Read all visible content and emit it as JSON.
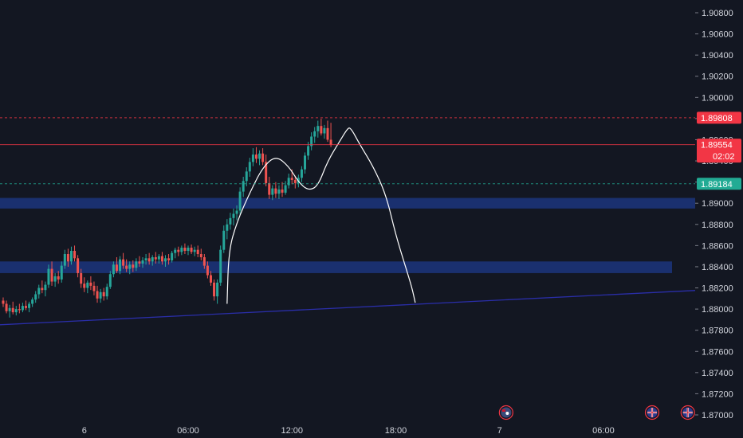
{
  "chart_data": {
    "type": "candlestick",
    "y_axis": {
      "min": 1.87,
      "max": 1.909,
      "ticks": [
        "1.90800",
        "1.90600",
        "1.90400",
        "1.90200",
        "1.90000",
        "1.89800",
        "1.89600",
        "1.89400",
        "1.89200",
        "1.89000",
        "1.88800",
        "1.88600",
        "1.88400",
        "1.88200",
        "1.88000",
        "1.87800",
        "1.87600",
        "1.87400",
        "1.87200",
        "1.87000"
      ],
      "tick_values": [
        1.908,
        1.906,
        1.904,
        1.902,
        1.9,
        1.898,
        1.896,
        1.894,
        1.892,
        1.89,
        1.888,
        1.886,
        1.884,
        1.882,
        1.88,
        1.878,
        1.876,
        1.874,
        1.872,
        1.87
      ]
    },
    "x_axis": {
      "labels": [
        {
          "text": "6",
          "index": 25
        },
        {
          "text": "06:00",
          "index": 57
        },
        {
          "text": "12:00",
          "index": 89
        },
        {
          "text": "18:00",
          "index": 121
        },
        {
          "text": "7",
          "index": 153
        },
        {
          "text": "06:00",
          "index": 185
        }
      ]
    },
    "candles": [
      [
        1.8808,
        1.8811,
        1.8802,
        1.8805
      ],
      [
        1.8805,
        1.8808,
        1.8796,
        1.8798
      ],
      [
        1.8798,
        1.8804,
        1.8792,
        1.8801
      ],
      [
        1.8801,
        1.8807,
        1.8795,
        1.8797
      ],
      [
        1.8797,
        1.8803,
        1.8794,
        1.88
      ],
      [
        1.88,
        1.8805,
        1.8796,
        1.8799
      ],
      [
        1.8799,
        1.8806,
        1.8797,
        1.8803
      ],
      [
        1.8803,
        1.8808,
        1.8799,
        1.8801
      ],
      [
        1.8801,
        1.8807,
        1.8797,
        1.8805
      ],
      [
        1.8805,
        1.8811,
        1.8802,
        1.8809
      ],
      [
        1.8809,
        1.8817,
        1.8806,
        1.8814
      ],
      [
        1.8814,
        1.8823,
        1.881,
        1.882
      ],
      [
        1.882,
        1.8827,
        1.8815,
        1.8818
      ],
      [
        1.8818,
        1.8826,
        1.8812,
        1.8823
      ],
      [
        1.8823,
        1.8842,
        1.882,
        1.8838
      ],
      [
        1.8838,
        1.8845,
        1.8822,
        1.8826
      ],
      [
        1.8826,
        1.8834,
        1.8821,
        1.8831
      ],
      [
        1.8831,
        1.8836,
        1.8824,
        1.8828
      ],
      [
        1.8828,
        1.8845,
        1.8825,
        1.8841
      ],
      [
        1.8841,
        1.8856,
        1.8838,
        1.8852
      ],
      [
        1.8852,
        1.8857,
        1.884,
        1.8845
      ],
      [
        1.8845,
        1.8859,
        1.8842,
        1.8855
      ],
      [
        1.8855,
        1.886,
        1.8845,
        1.8848
      ],
      [
        1.8848,
        1.8851,
        1.883,
        1.8834
      ],
      [
        1.8834,
        1.8838,
        1.882,
        1.8824
      ],
      [
        1.8824,
        1.883,
        1.8816,
        1.882
      ],
      [
        1.882,
        1.8827,
        1.8815,
        1.8825
      ],
      [
        1.8825,
        1.8831,
        1.8818,
        1.8822
      ],
      [
        1.8822,
        1.8826,
        1.8813,
        1.8817
      ],
      [
        1.8817,
        1.8822,
        1.8806,
        1.881
      ],
      [
        1.881,
        1.8819,
        1.8806,
        1.8816
      ],
      [
        1.8816,
        1.882,
        1.8808,
        1.8812
      ],
      [
        1.8812,
        1.8824,
        1.8809,
        1.8821
      ],
      [
        1.8821,
        1.8836,
        1.8819,
        1.8833
      ],
      [
        1.8833,
        1.8845,
        1.883,
        1.8842
      ],
      [
        1.8842,
        1.8849,
        1.8834,
        1.8836
      ],
      [
        1.8836,
        1.885,
        1.8833,
        1.8847
      ],
      [
        1.8847,
        1.8853,
        1.8838,
        1.8841
      ],
      [
        1.8841,
        1.8847,
        1.8835,
        1.8838
      ],
      [
        1.8838,
        1.8845,
        1.8833,
        1.8842
      ],
      [
        1.8842,
        1.8846,
        1.8835,
        1.8839
      ],
      [
        1.8839,
        1.8848,
        1.8836,
        1.8845
      ],
      [
        1.8845,
        1.885,
        1.884,
        1.8843
      ],
      [
        1.8843,
        1.8849,
        1.8839,
        1.8846
      ],
      [
        1.8846,
        1.8852,
        1.8842,
        1.8848
      ],
      [
        1.8848,
        1.8853,
        1.8842,
        1.8845
      ],
      [
        1.8845,
        1.8851,
        1.8841,
        1.8849
      ],
      [
        1.8849,
        1.8854,
        1.8843,
        1.8847
      ],
      [
        1.8847,
        1.8852,
        1.8843,
        1.885
      ],
      [
        1.885,
        1.8854,
        1.8842,
        1.8845
      ],
      [
        1.8845,
        1.8851,
        1.884,
        1.8848
      ],
      [
        1.8848,
        1.8852,
        1.8842,
        1.8846
      ],
      [
        1.8846,
        1.8855,
        1.8844,
        1.8853
      ],
      [
        1.8853,
        1.8858,
        1.8848,
        1.8856
      ],
      [
        1.8856,
        1.8859,
        1.885,
        1.8854
      ],
      [
        1.8854,
        1.886,
        1.8851,
        1.8858
      ],
      [
        1.8858,
        1.8862,
        1.8852,
        1.8855
      ],
      [
        1.8855,
        1.886,
        1.8851,
        1.8858
      ],
      [
        1.8858,
        1.8861,
        1.8852,
        1.8854
      ],
      [
        1.8854,
        1.8859,
        1.885,
        1.8856
      ],
      [
        1.8856,
        1.886,
        1.8849,
        1.8852
      ],
      [
        1.8852,
        1.8857,
        1.8846,
        1.8849
      ],
      [
        1.8849,
        1.8852,
        1.8838,
        1.8841
      ],
      [
        1.8841,
        1.8845,
        1.8829,
        1.8832
      ],
      [
        1.8832,
        1.8836,
        1.8822,
        1.8825
      ],
      [
        1.8825,
        1.8828,
        1.8808,
        1.8812
      ],
      [
        1.8812,
        1.8828,
        1.8805,
        1.8825
      ],
      [
        1.8825,
        1.886,
        1.8822,
        1.8856
      ],
      [
        1.8856,
        1.8879,
        1.8853,
        1.8874
      ],
      [
        1.8874,
        1.8885,
        1.8866,
        1.888
      ],
      [
        1.888,
        1.8891,
        1.8875,
        1.8886
      ],
      [
        1.8886,
        1.8895,
        1.8879,
        1.889
      ],
      [
        1.889,
        1.8898,
        1.8884,
        1.8893
      ],
      [
        1.8893,
        1.8915,
        1.8889,
        1.8911
      ],
      [
        1.8911,
        1.8925,
        1.8906,
        1.8921
      ],
      [
        1.8921,
        1.8934,
        1.8916,
        1.893
      ],
      [
        1.893,
        1.8943,
        1.8925,
        1.8939
      ],
      [
        1.8939,
        1.8952,
        1.8935,
        1.8946
      ],
      [
        1.8946,
        1.8953,
        1.8938,
        1.8942
      ],
      [
        1.8942,
        1.895,
        1.8936,
        1.8947
      ],
      [
        1.8947,
        1.8952,
        1.8936,
        1.8939
      ],
      [
        1.8939,
        1.8946,
        1.8916,
        1.8919
      ],
      [
        1.8919,
        1.8925,
        1.8904,
        1.8908
      ],
      [
        1.8908,
        1.8917,
        1.8903,
        1.8914
      ],
      [
        1.8914,
        1.892,
        1.8905,
        1.8909
      ],
      [
        1.8909,
        1.8917,
        1.8904,
        1.8913
      ],
      [
        1.8913,
        1.892,
        1.8906,
        1.891
      ],
      [
        1.891,
        1.8921,
        1.8908,
        1.8917
      ],
      [
        1.8917,
        1.8928,
        1.8914,
        1.8924
      ],
      [
        1.8924,
        1.8932,
        1.8918,
        1.8922
      ],
      [
        1.8922,
        1.8926,
        1.8914,
        1.8919
      ],
      [
        1.8919,
        1.8927,
        1.8915,
        1.8924
      ],
      [
        1.8924,
        1.8935,
        1.892,
        1.8932
      ],
      [
        1.8932,
        1.8948,
        1.8928,
        1.8945
      ],
      [
        1.8945,
        1.8958,
        1.8941,
        1.8954
      ],
      [
        1.8954,
        1.8967,
        1.895,
        1.8963
      ],
      [
        1.8963,
        1.8972,
        1.8957,
        1.8968
      ],
      [
        1.8968,
        1.8978,
        1.8962,
        1.8973
      ],
      [
        1.8973,
        1.898,
        1.8964,
        1.8966
      ],
      [
        1.8966,
        1.8974,
        1.8961,
        1.8971
      ],
      [
        1.8971,
        1.8978,
        1.8958,
        1.896
      ],
      [
        1.896,
        1.8976,
        1.8953,
        1.8955
      ]
    ],
    "zones": [
      {
        "name": "resistance-zone",
        "from": 1.8895,
        "to": 1.8905
      },
      {
        "name": "support-zone",
        "from": 1.8834,
        "to": 1.8845
      }
    ],
    "trendline": {
      "x1": -2,
      "y1": 1.8785,
      "x2": 216,
      "y2": 1.8818
    },
    "sketch_path": [
      [
        69,
        1.8805
      ],
      [
        69.5,
        1.8855
      ],
      [
        72,
        1.8882
      ],
      [
        76,
        1.891
      ],
      [
        80,
        1.8934
      ],
      [
        84,
        1.8945
      ],
      [
        88,
        1.8935
      ],
      [
        91,
        1.892
      ],
      [
        94,
        1.8912
      ],
      [
        97,
        1.8916
      ],
      [
        100,
        1.894
      ],
      [
        104,
        1.896
      ],
      [
        106,
        1.897
      ],
      [
        107,
        1.8972
      ],
      [
        110,
        1.8955
      ],
      [
        114,
        1.8935
      ],
      [
        118,
        1.8908
      ],
      [
        121,
        1.887
      ],
      [
        124,
        1.884
      ],
      [
        126,
        1.882
      ],
      [
        127,
        1.8806
      ]
    ],
    "price_lines": [
      {
        "name": "high-price",
        "value": 1.89808,
        "label": "1.89808",
        "color": "#f23645",
        "dash": true
      },
      {
        "name": "last-price",
        "value": 1.89554,
        "label": "1.89554",
        "countdown": "02:02",
        "color": "#f23645",
        "dash": false
      },
      {
        "name": "bid-price",
        "value": 1.89184,
        "label": "1.89184",
        "color": "#22ab94",
        "dash": true
      }
    ],
    "event_flags": [
      {
        "name": "economic-event-icon",
        "index": 155,
        "glyph": "AU"
      },
      {
        "name": "uk-flag-icon",
        "index": 200,
        "glyph": "UK"
      },
      {
        "name": "uk-flag-icon",
        "index": 211,
        "glyph": "UK"
      }
    ],
    "colors": {
      "background": "#131722",
      "up": "#26a69a",
      "down": "#ef5350",
      "zone": "#1e3a8a",
      "trendline": "#2a2ea8",
      "sketch": "#ffffff",
      "axis_text": "#d1d4dc"
    }
  }
}
